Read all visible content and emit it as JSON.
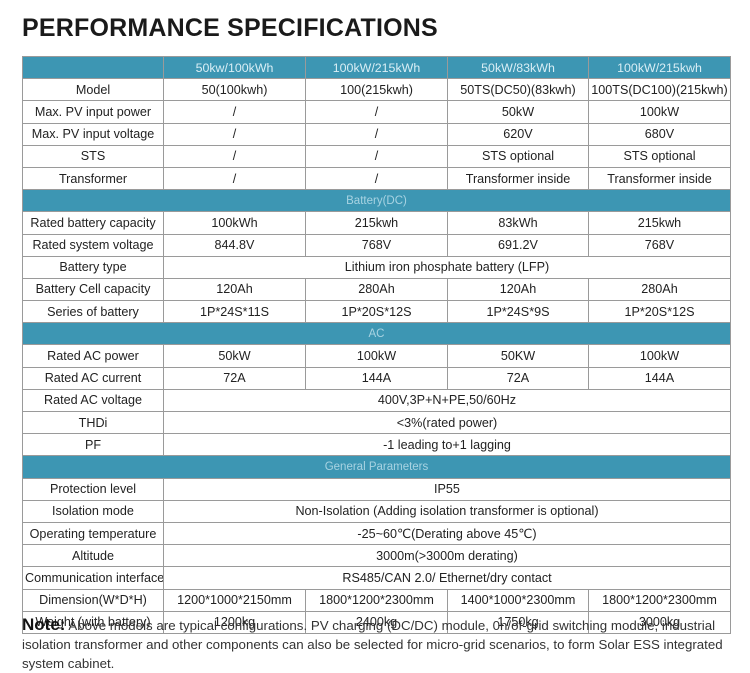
{
  "title": "PERFORMANCE SPECIFICATIONS",
  "header": [
    "",
    "50kw/100kWh",
    "100kW/215kWh",
    "50kW/83kWh",
    "100kW/215kwh"
  ],
  "rows": [
    {
      "label": "Model",
      "cells": [
        "50(100kwh)",
        "100(215kwh)",
        "50TS(DC50)(83kwh)",
        "100TS(DC100)(215kwh)"
      ]
    },
    {
      "label": "Max. PV input power",
      "cells": [
        "/",
        "/",
        "50kW",
        "100kW"
      ]
    },
    {
      "label": "Max. PV input voltage",
      "cells": [
        "/",
        "/",
        "620V",
        "680V"
      ]
    },
    {
      "label": "STS",
      "cells": [
        "/",
        "/",
        "STS optional",
        "STS optional"
      ]
    },
    {
      "label": "Transformer",
      "cells": [
        "/",
        "/",
        "Transformer inside",
        "Transformer inside"
      ]
    },
    {
      "section": "Battery(DC)"
    },
    {
      "label": "Rated battery capacity",
      "cells": [
        "100kWh",
        "215kwh",
        "83kWh",
        "215kwh"
      ]
    },
    {
      "label": "Rated system voltage",
      "cells": [
        "844.8V",
        "768V",
        "691.2V",
        "768V"
      ]
    },
    {
      "label": "Battery type",
      "span": "Lithium iron phosphate battery (LFP)"
    },
    {
      "label": "Battery Cell capacity",
      "cells": [
        "120Ah",
        "280Ah",
        "120Ah",
        "280Ah"
      ]
    },
    {
      "label": "Series of battery",
      "cells": [
        "1P*24S*11S",
        "1P*20S*12S",
        "1P*24S*9S",
        "1P*20S*12S"
      ]
    },
    {
      "section": "AC"
    },
    {
      "label": "Rated AC power",
      "cells": [
        "50kW",
        "100kW",
        "50KW",
        "100kW"
      ]
    },
    {
      "label": "Rated AC current",
      "cells": [
        "72A",
        "144A",
        "72A",
        "144A"
      ]
    },
    {
      "label": "Rated AC voltage",
      "span": "400V,3P+N+PE,50/60Hz"
    },
    {
      "label": "THDi",
      "span": "<3%(rated power)"
    },
    {
      "label": "PF",
      "span": "-1 leading to+1 lagging"
    },
    {
      "section": "General Parameters"
    },
    {
      "label": "Protection level",
      "span": "IP55"
    },
    {
      "label": "Isolation mode",
      "span": "Non-Isolation (Adding isolation transformer is optional)"
    },
    {
      "label": "Operating  temperature",
      "span": "-25~60℃(Derating above 45℃)"
    },
    {
      "label": "Altitude",
      "span": "3000m(>3000m derating)"
    },
    {
      "label": "Communication interface",
      "span": "RS485/CAN 2.0/ Ethernet/dry contact"
    },
    {
      "label": "Dimension(W*D*H)",
      "cells": [
        "1200*1000*2150mm",
        "1800*1200*2300mm",
        "1400*1000*2300mm",
        "1800*1200*2300mm"
      ]
    },
    {
      "label": "Weight (with battery)",
      "cells": [
        "1200kg",
        "2400kg",
        "1750kg",
        "3000kg"
      ]
    }
  ],
  "note": {
    "label": "Note:",
    "text": " Above models are typical configurations. PV charging (DC/DC) module, 0n/of-grid switching module, industrial isolation transformer and other components can also be selected for micro-grid scenarios, to form Solar ESS integrated system cabinet."
  }
}
